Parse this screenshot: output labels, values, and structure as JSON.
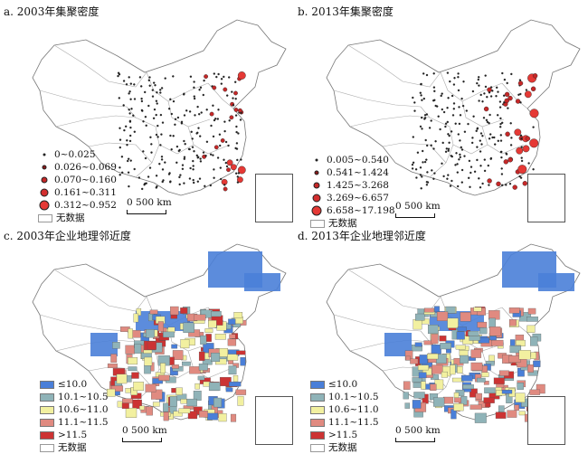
{
  "panels": [
    {
      "id": "a",
      "title": "a. 2003年集聚密度",
      "legend_type": "dots",
      "legend": [
        {
          "label": "0~0.025",
          "size": 3,
          "color": "#222222"
        },
        {
          "label": "0.026~0.069",
          "size": 5,
          "color": "#8b1a1a"
        },
        {
          "label": "0.070~0.160",
          "size": 7,
          "color": "#c62828"
        },
        {
          "label": "0.161~0.311",
          "size": 9,
          "color": "#d32f2f"
        },
        {
          "label": "0.312~0.952",
          "size": 11,
          "color": "#e53935"
        }
      ],
      "nodata": "无数据",
      "scale": "0  500 km"
    },
    {
      "id": "b",
      "title": "b. 2013年集聚密度",
      "legend_type": "dots",
      "legend": [
        {
          "label": "0.005~0.540",
          "size": 3,
          "color": "#222222"
        },
        {
          "label": "0.541~1.424",
          "size": 5,
          "color": "#8b1a1a"
        },
        {
          "label": "1.425~3.268",
          "size": 7,
          "color": "#c62828"
        },
        {
          "label": "3.269~6.657",
          "size": 9,
          "color": "#d32f2f"
        },
        {
          "label": "6.658~17.198",
          "size": 11,
          "color": "#e53935"
        }
      ],
      "nodata": "无数据",
      "scale": "0  500 km"
    },
    {
      "id": "c",
      "title": "c. 2003年企业地理邻近度",
      "legend_type": "fill",
      "legend": [
        {
          "label": "≤10.0",
          "color": "#4a7fd8"
        },
        {
          "label": "10.1~10.5",
          "color": "#8fb3b8"
        },
        {
          "label": "10.6~11.0",
          "color": "#f2f0a0"
        },
        {
          "label": "11.1~11.5",
          "color": "#e08a80"
        },
        {
          "label": ">11.5",
          "color": "#cc3333"
        }
      ],
      "nodata": "无数据",
      "scale": "0  500 km"
    },
    {
      "id": "d",
      "title": "d. 2013年企业地理邻近度",
      "legend_type": "fill",
      "legend": [
        {
          "label": "≤10.0",
          "color": "#4a7fd8"
        },
        {
          "label": "10.1~10.5",
          "color": "#8fb3b8"
        },
        {
          "label": "10.6~11.0",
          "color": "#f2f0a0"
        },
        {
          "label": "11.1~11.5",
          "color": "#e08a80"
        },
        {
          "label": ">11.5",
          "color": "#cc3333"
        }
      ],
      "nodata": "无数据",
      "scale": "0  500 km"
    }
  ]
}
